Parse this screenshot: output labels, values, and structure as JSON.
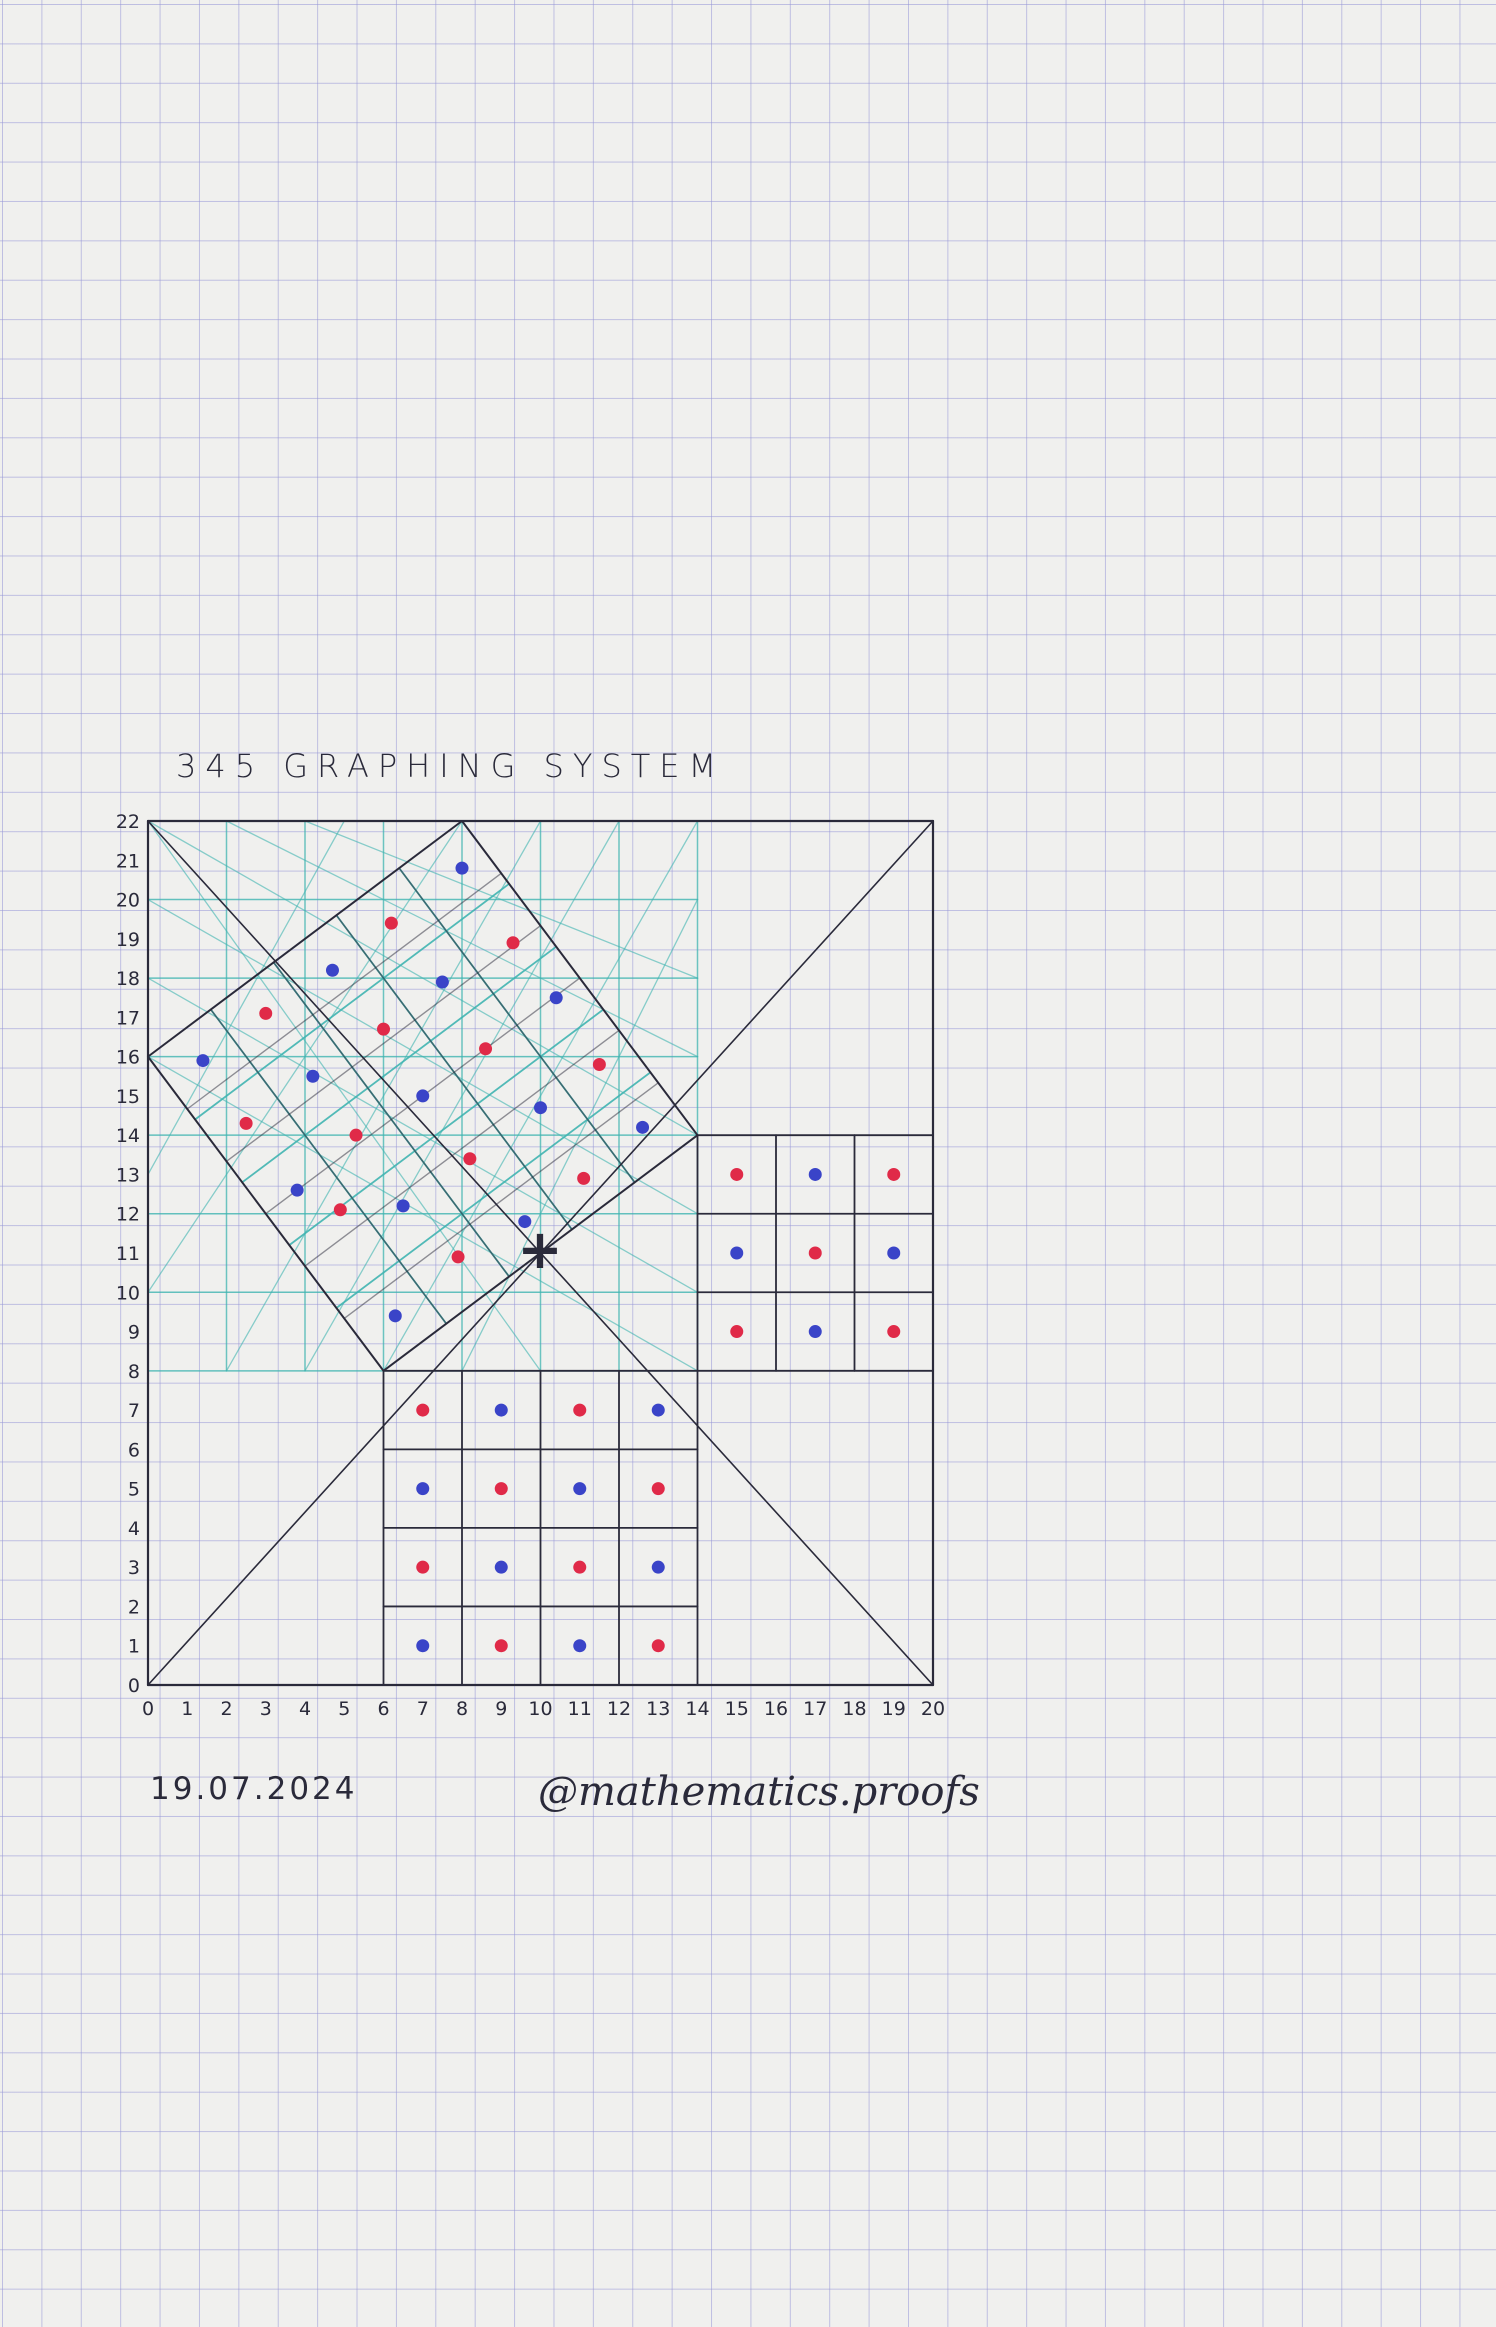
{
  "title": "345 GRAPHING SYSTEM",
  "date": "19.07.2024",
  "signature": "@mathematics.proofs",
  "center_mark": "+",
  "colors": {
    "paper": "#f0f0ee",
    "grid": "#9696d7",
    "ink": "#2a2a3a",
    "teal": "#3fb4b0",
    "red_dot": "#e02a48",
    "blue_dot": "#3a44c8"
  },
  "chart_data": {
    "type": "scatter",
    "title": "345 GRAPHING SYSTEM",
    "xlim": [
      0,
      20
    ],
    "ylim": [
      0,
      22
    ],
    "x_ticks": [
      "0",
      "1",
      "2",
      "3",
      "4",
      "5",
      "6",
      "7",
      "8",
      "9",
      "10",
      "11",
      "12",
      "13",
      "14",
      "15",
      "16",
      "17",
      "18",
      "19",
      "20"
    ],
    "y_ticks": [
      "0",
      "1",
      "2",
      "3",
      "4",
      "5",
      "6",
      "7",
      "8",
      "9",
      "10",
      "11",
      "12",
      "13",
      "14",
      "15",
      "16",
      "17",
      "18",
      "19",
      "20",
      "21",
      "22"
    ],
    "center": [
      10,
      11
    ],
    "lower_grid": {
      "columns": [
        7,
        9,
        11,
        13
      ],
      "rows": [
        7,
        5,
        3,
        1
      ],
      "colors": [
        [
          "red",
          "blue",
          "red",
          "blue"
        ],
        [
          "blue",
          "red",
          "blue",
          "red"
        ],
        [
          "red",
          "blue",
          "red",
          "blue"
        ],
        [
          "blue",
          "red",
          "blue",
          "red"
        ]
      ]
    },
    "right_grid": {
      "columns": [
        15,
        17,
        19
      ],
      "rows": [
        13,
        11,
        9
      ],
      "colors": [
        [
          "red",
          "blue",
          "red"
        ],
        [
          "blue",
          "red",
          "blue"
        ],
        [
          "red",
          "blue",
          "red"
        ]
      ]
    },
    "rotated_grid_points": {
      "red": [
        [
          2.5,
          14.3
        ],
        [
          3,
          17.1
        ],
        [
          4.9,
          12.1
        ],
        [
          5.3,
          14
        ],
        [
          6,
          16.7
        ],
        [
          6.2,
          19.4
        ],
        [
          7.9,
          10.9
        ],
        [
          8.2,
          13.4
        ],
        [
          8.6,
          16.2
        ],
        [
          9.3,
          18.9
        ],
        [
          11.1,
          12.9
        ],
        [
          11.5,
          15.8
        ]
      ],
      "blue": [
        [
          1.4,
          15.9
        ],
        [
          3.8,
          12.6
        ],
        [
          4.2,
          15.5
        ],
        [
          4.7,
          18.2
        ],
        [
          6.3,
          9.4
        ],
        [
          6.5,
          12.2
        ],
        [
          7,
          15
        ],
        [
          7.5,
          17.9
        ],
        [
          8,
          20.8
        ],
        [
          9.6,
          11.8
        ],
        [
          10,
          14.7
        ],
        [
          10.4,
          17.5
        ],
        [
          12.6,
          14.2
        ]
      ]
    }
  }
}
